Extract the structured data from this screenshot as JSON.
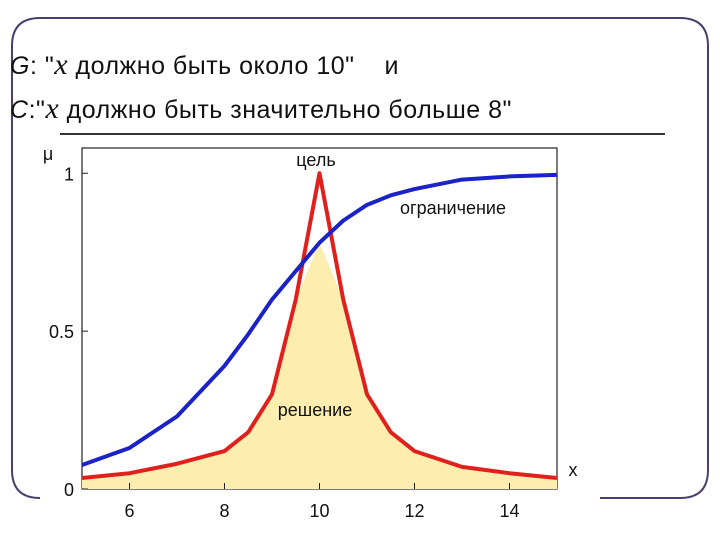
{
  "heading": [
    {
      "prefix": "G",
      "quote": ": \"",
      "var": "x",
      "text": " должно быть около 10\"",
      "tail": "и"
    },
    {
      "prefix": "C",
      "quote": ":\"",
      "var": "x",
      "text": " должно быть значительно больше 8\""
    }
  ],
  "chart_data": {
    "type": "line",
    "x": [
      5,
      6,
      7,
      8,
      8.5,
      9,
      9.5,
      10,
      10.5,
      11,
      11.5,
      12,
      13,
      14,
      15
    ],
    "series": [
      {
        "name": "цель",
        "color": "#e0201c",
        "values": [
          0.035,
          0.05,
          0.08,
          0.12,
          0.18,
          0.3,
          0.6,
          1.0,
          0.6,
          0.3,
          0.18,
          0.12,
          0.07,
          0.05,
          0.035
        ]
      },
      {
        "name": "ограничение",
        "color": "#1a22c8",
        "values": [
          0.076,
          0.13,
          0.23,
          0.39,
          0.49,
          0.6,
          0.69,
          0.78,
          0.85,
          0.9,
          0.93,
          0.95,
          0.98,
          0.99,
          0.995
        ]
      }
    ],
    "area_label": "решение",
    "area_color": "#fdeeb0",
    "y_label": "μ",
    "x_label": "x",
    "xlim": [
      5,
      15
    ],
    "ylim": [
      0,
      1.08
    ],
    "xticks": [
      6,
      8,
      10,
      12,
      14
    ],
    "yticks": [
      0,
      0.5,
      1
    ]
  }
}
